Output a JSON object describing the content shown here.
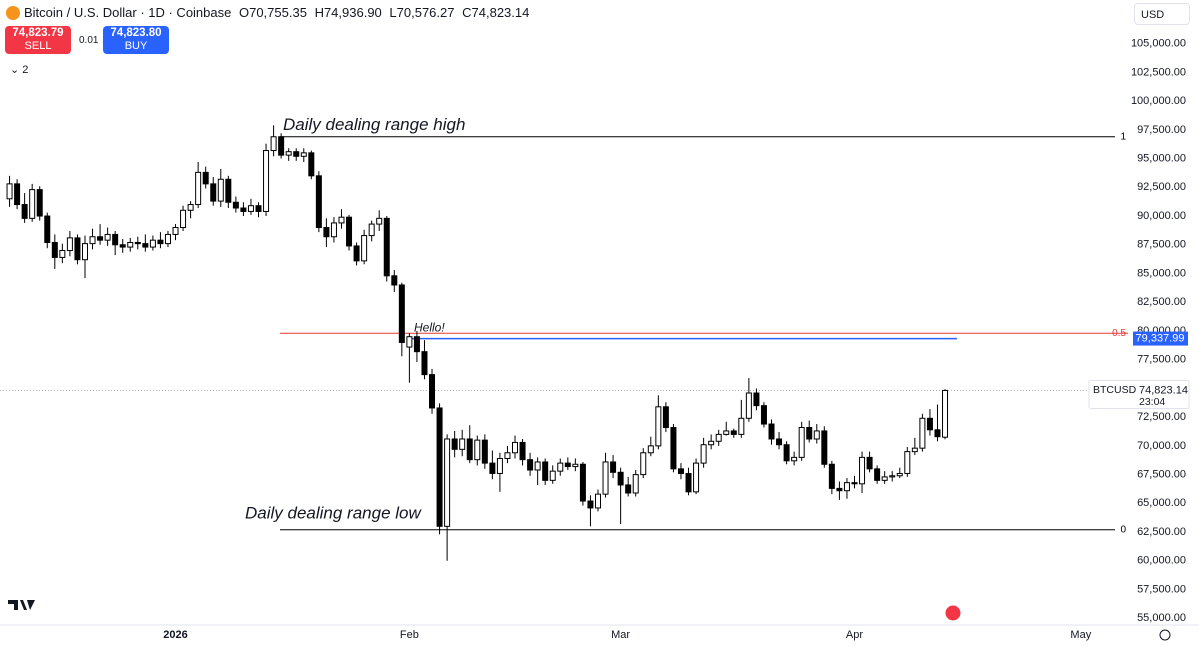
{
  "chart_data": {
    "type": "candlestick",
    "title": "Bitcoin / U.S. Dollar · 1D · Coinbase",
    "ohlc_labels": [
      "O70,755.35",
      "H74,936.90",
      "L70,576.27",
      "C74,823.14"
    ],
    "sell_price": "74,823.79",
    "sell_label": "SELL",
    "spread": "0.01",
    "buy_price": "74,823.80",
    "buy_label": "BUY",
    "indicator_count": "2",
    "currency": "USD",
    "up_color": "#ffffff",
    "down_color": "#000000",
    "xlim": [
      -1,
      146
    ],
    "xticks": [
      {
        "value": 22,
        "label": "2026"
      },
      {
        "value": 53,
        "label": "Feb"
      },
      {
        "value": 81,
        "label": "Mar"
      },
      {
        "value": 112,
        "label": "Apr"
      },
      {
        "value": 142,
        "label": "May"
      }
    ],
    "ylim": [
      54500,
      108800
    ],
    "yticks": [
      {
        "value": 55000,
        "label": "55,000.00"
      },
      {
        "value": 57500,
        "label": "57,500.00"
      },
      {
        "value": 60000,
        "label": "60,000.00"
      },
      {
        "value": 62500,
        "label": "62,500.00"
      },
      {
        "value": 65000,
        "label": "65,000.00"
      },
      {
        "value": 67500,
        "label": "67,500.00"
      },
      {
        "value": 70000,
        "label": "70,000.00"
      },
      {
        "value": 72500,
        "label": "72,500.00"
      },
      {
        "value": 75000,
        "label": "75,000.00"
      },
      {
        "value": 77500,
        "label": "77,500.00"
      },
      {
        "value": 80000,
        "label": "80,000.00"
      },
      {
        "value": 82500,
        "label": "82,500.00"
      },
      {
        "value": 85000,
        "label": "85,000.00"
      },
      {
        "value": 87500,
        "label": "87,500.00"
      },
      {
        "value": 90000,
        "label": "90,000.00"
      },
      {
        "value": 92500,
        "label": "92,500.00"
      },
      {
        "value": 95000,
        "label": "95,000.00"
      },
      {
        "value": 97500,
        "label": "97,500.00"
      },
      {
        "value": 100000,
        "label": "100,000.00"
      },
      {
        "value": 102500,
        "label": "102,500.00"
      },
      {
        "value": 105000,
        "label": "105,000.00"
      }
    ],
    "levels": [
      {
        "name": "Daily dealing range high",
        "value": 96900,
        "label": "1",
        "color": "#000000"
      },
      {
        "value": 79800,
        "label": "0.5",
        "color": "#e53935"
      },
      {
        "name": "Daily dealing range low",
        "value": 62700,
        "label": "0",
        "color": "#000000"
      }
    ],
    "hline": {
      "value": 79337.99,
      "value_label": "79,337.99",
      "text": "Hello!",
      "color": "#2962ff"
    },
    "last_price": {
      "value": 74823.14,
      "label": "74,823.14",
      "symbol": "BTCUSD",
      "countdown": "23:04"
    },
    "values": [
      [
        91500,
        93500,
        90800,
        92800
      ],
      [
        92800,
        93200,
        90600,
        91000
      ],
      [
        91000,
        92000,
        89400,
        89800
      ],
      [
        89800,
        92800,
        89500,
        92300
      ],
      [
        92300,
        92600,
        89600,
        90000
      ],
      [
        90000,
        90300,
        87200,
        87700
      ],
      [
        87700,
        88400,
        85400,
        86400
      ],
      [
        86400,
        87600,
        85900,
        87000
      ],
      [
        87000,
        88700,
        86500,
        88100
      ],
      [
        88100,
        88400,
        85800,
        86200
      ],
      [
        86200,
        88300,
        84600,
        87600
      ],
      [
        87600,
        88900,
        87100,
        88200
      ],
      [
        88200,
        89300,
        87500,
        87900
      ],
      [
        87900,
        89000,
        87400,
        88400
      ],
      [
        88400,
        88700,
        86600,
        87500
      ],
      [
        87500,
        88000,
        86800,
        87300
      ],
      [
        87300,
        88100,
        86900,
        87700
      ],
      [
        87700,
        88200,
        87100,
        87600
      ],
      [
        87600,
        88400,
        86900,
        87300
      ],
      [
        87300,
        88300,
        87000,
        87900
      ],
      [
        87900,
        88600,
        87200,
        87600
      ],
      [
        87600,
        88700,
        87300,
        88400
      ],
      [
        88400,
        89300,
        87900,
        89000
      ],
      [
        89000,
        90900,
        88700,
        90500
      ],
      [
        90500,
        91300,
        89800,
        91000
      ],
      [
        91000,
        94700,
        90700,
        93800
      ],
      [
        93800,
        94300,
        92400,
        92800
      ],
      [
        92800,
        93400,
        90900,
        91300
      ],
      [
        91300,
        94100,
        90800,
        93200
      ],
      [
        93200,
        93500,
        90700,
        91200
      ],
      [
        91200,
        91700,
        90300,
        90700
      ],
      [
        90700,
        91200,
        90000,
        90400
      ],
      [
        90400,
        91500,
        90100,
        90900
      ],
      [
        90900,
        91200,
        89900,
        90400
      ],
      [
        90400,
        96300,
        90000,
        95700
      ],
      [
        95700,
        97900,
        95200,
        96900
      ],
      [
        96900,
        97200,
        95000,
        95300
      ],
      [
        95300,
        95900,
        94800,
        95600
      ],
      [
        95600,
        95900,
        94800,
        95200
      ],
      [
        95200,
        95900,
        94700,
        95500
      ],
      [
        95500,
        95700,
        93200,
        93500
      ],
      [
        93500,
        93900,
        88600,
        89000
      ],
      [
        89000,
        89800,
        87300,
        88200
      ],
      [
        88200,
        89900,
        87700,
        89400
      ],
      [
        89400,
        90600,
        88900,
        89900
      ],
      [
        89900,
        90100,
        87000,
        87400
      ],
      [
        87400,
        87700,
        85700,
        86100
      ],
      [
        86100,
        88800,
        85800,
        88300
      ],
      [
        88300,
        89600,
        87800,
        89300
      ],
      [
        89300,
        90500,
        88700,
        89800
      ],
      [
        89800,
        90000,
        84300,
        84800
      ],
      [
        84800,
        85300,
        83400,
        84000
      ],
      [
        84000,
        84200,
        77800,
        79000
      ],
      [
        78600,
        79800,
        75500,
        79500
      ],
      [
        79500,
        80000,
        77300,
        78200
      ],
      [
        78200,
        79200,
        75800,
        76200
      ],
      [
        76200,
        76700,
        72800,
        73300
      ],
      [
        73300,
        73700,
        62300,
        63000
      ],
      [
        63000,
        71000,
        60000,
        70600
      ],
      [
        70600,
        71300,
        69000,
        69700
      ],
      [
        69700,
        71400,
        69100,
        70600
      ],
      [
        70600,
        71800,
        68500,
        68800
      ],
      [
        68800,
        70900,
        68300,
        70500
      ],
      [
        70500,
        71000,
        68000,
        68500
      ],
      [
        68500,
        69600,
        67100,
        67600
      ],
      [
        67600,
        69400,
        66000,
        68900
      ],
      [
        68900,
        70000,
        68500,
        69400
      ],
      [
        69400,
        70900,
        68900,
        70300
      ],
      [
        70300,
        70600,
        68300,
        68800
      ],
      [
        68800,
        69400,
        67400,
        67900
      ],
      [
        67900,
        69000,
        66600,
        68600
      ],
      [
        68600,
        68900,
        66600,
        67000
      ],
      [
        67000,
        68300,
        66700,
        67800
      ],
      [
        67800,
        68900,
        67400,
        68500
      ],
      [
        68500,
        69000,
        67900,
        68200
      ],
      [
        68200,
        68900,
        67800,
        68400
      ],
      [
        68400,
        68600,
        64800,
        65200
      ],
      [
        65200,
        65700,
        63000,
        64600
      ],
      [
        64600,
        66200,
        64300,
        65800
      ],
      [
        65800,
        69400,
        65500,
        68600
      ],
      [
        68600,
        69200,
        67200,
        67700
      ],
      [
        67700,
        68100,
        63200,
        66600
      ],
      [
        66600,
        67300,
        65600,
        65900
      ],
      [
        65900,
        67900,
        65600,
        67500
      ],
      [
        67500,
        69800,
        67200,
        69400
      ],
      [
        69400,
        70800,
        69100,
        70000
      ],
      [
        70000,
        74400,
        69700,
        73400
      ],
      [
        73400,
        73800,
        71200,
        71600
      ],
      [
        71600,
        71900,
        67700,
        68000
      ],
      [
        68000,
        68500,
        67100,
        67600
      ],
      [
        67600,
        68100,
        65700,
        66000
      ],
      [
        66000,
        68900,
        65800,
        68500
      ],
      [
        68500,
        70700,
        68100,
        70100
      ],
      [
        70100,
        71000,
        69700,
        70400
      ],
      [
        70400,
        71400,
        70000,
        71000
      ],
      [
        71000,
        72100,
        70900,
        71300
      ],
      [
        71300,
        71500,
        70700,
        71000
      ],
      [
        71000,
        74000,
        70700,
        72400
      ],
      [
        72400,
        75900,
        72100,
        74600
      ],
      [
        74600,
        75000,
        73100,
        73500
      ],
      [
        73500,
        73800,
        71600,
        71900
      ],
      [
        71900,
        72300,
        70100,
        70600
      ],
      [
        70600,
        71200,
        69700,
        70100
      ],
      [
        70100,
        70400,
        68400,
        68700
      ],
      [
        68700,
        69500,
        68300,
        69000
      ],
      [
        69000,
        72100,
        68700,
        71600
      ],
      [
        71600,
        72200,
        70300,
        70600
      ],
      [
        70600,
        71900,
        70200,
        71300
      ],
      [
        71300,
        71700,
        68100,
        68400
      ],
      [
        68400,
        68700,
        65800,
        66300
      ],
      [
        66300,
        66900,
        65300,
        66100
      ],
      [
        66100,
        67200,
        65400,
        66800
      ],
      [
        66800,
        67400,
        66300,
        66700
      ],
      [
        66700,
        69500,
        65900,
        69000
      ],
      [
        69000,
        69500,
        67700,
        68000
      ],
      [
        68000,
        68300,
        66700,
        67000
      ],
      [
        67000,
        67800,
        66700,
        67300
      ],
      [
        67300,
        67800,
        66900,
        67400
      ],
      [
        67400,
        68100,
        67200,
        67600
      ],
      [
        67600,
        69900,
        67300,
        69500
      ],
      [
        69500,
        70700,
        69200,
        69800
      ],
      [
        69800,
        72800,
        69500,
        72400
      ],
      [
        72400,
        73200,
        70900,
        71400
      ],
      [
        71400,
        73600,
        70400,
        70800
      ],
      [
        70755.35,
        74936.9,
        70576.27,
        74823.14
      ]
    ]
  }
}
